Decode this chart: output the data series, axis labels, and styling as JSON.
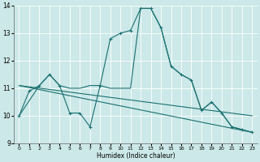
{
  "title": "",
  "xlabel": "Humidex (Indice chaleur)",
  "xlim": [
    -0.5,
    23.5
  ],
  "ylim": [
    9,
    14
  ],
  "yticks": [
    9,
    10,
    11,
    12,
    13,
    14
  ],
  "xticks": [
    0,
    1,
    2,
    3,
    4,
    5,
    6,
    7,
    8,
    9,
    10,
    11,
    12,
    13,
    14,
    15,
    16,
    17,
    18,
    19,
    20,
    21,
    22,
    23
  ],
  "bg_color": "#cce8e8",
  "grid_color": "#b0d8d8",
  "line_color": "#1a7070",
  "curves": [
    {
      "x": [
        0,
        1,
        2,
        3,
        4,
        5,
        6,
        7,
        8,
        9,
        10,
        11,
        12,
        13,
        14,
        15,
        16,
        17,
        18,
        19,
        20,
        21,
        22,
        23
      ],
      "y": [
        10.0,
        10.9,
        11.1,
        11.5,
        11.1,
        10.1,
        10.1,
        9.6,
        11.1,
        12.8,
        13.0,
        13.1,
        13.9,
        13.9,
        13.2,
        11.8,
        11.5,
        11.3,
        10.2,
        10.5,
        10.1,
        9.6,
        9.5,
        9.4
      ],
      "marker": true
    },
    {
      "x": [
        0,
        23
      ],
      "y": [
        11.1,
        9.4
      ],
      "marker": false
    },
    {
      "x": [
        0,
        23
      ],
      "y": [
        11.1,
        10.0
      ],
      "marker": false
    },
    {
      "x": [
        0,
        2,
        3,
        4,
        5,
        6,
        7,
        8,
        9,
        10,
        11,
        12,
        13,
        14,
        15,
        16,
        17,
        18,
        19,
        20,
        21,
        22,
        23
      ],
      "y": [
        10.0,
        11.1,
        11.5,
        11.1,
        11.0,
        11.0,
        11.1,
        11.1,
        11.0,
        11.0,
        11.0,
        13.9,
        13.9,
        13.2,
        11.8,
        11.5,
        11.3,
        10.2,
        10.5,
        10.1,
        9.6,
        9.5,
        9.4
      ],
      "marker": false
    }
  ]
}
